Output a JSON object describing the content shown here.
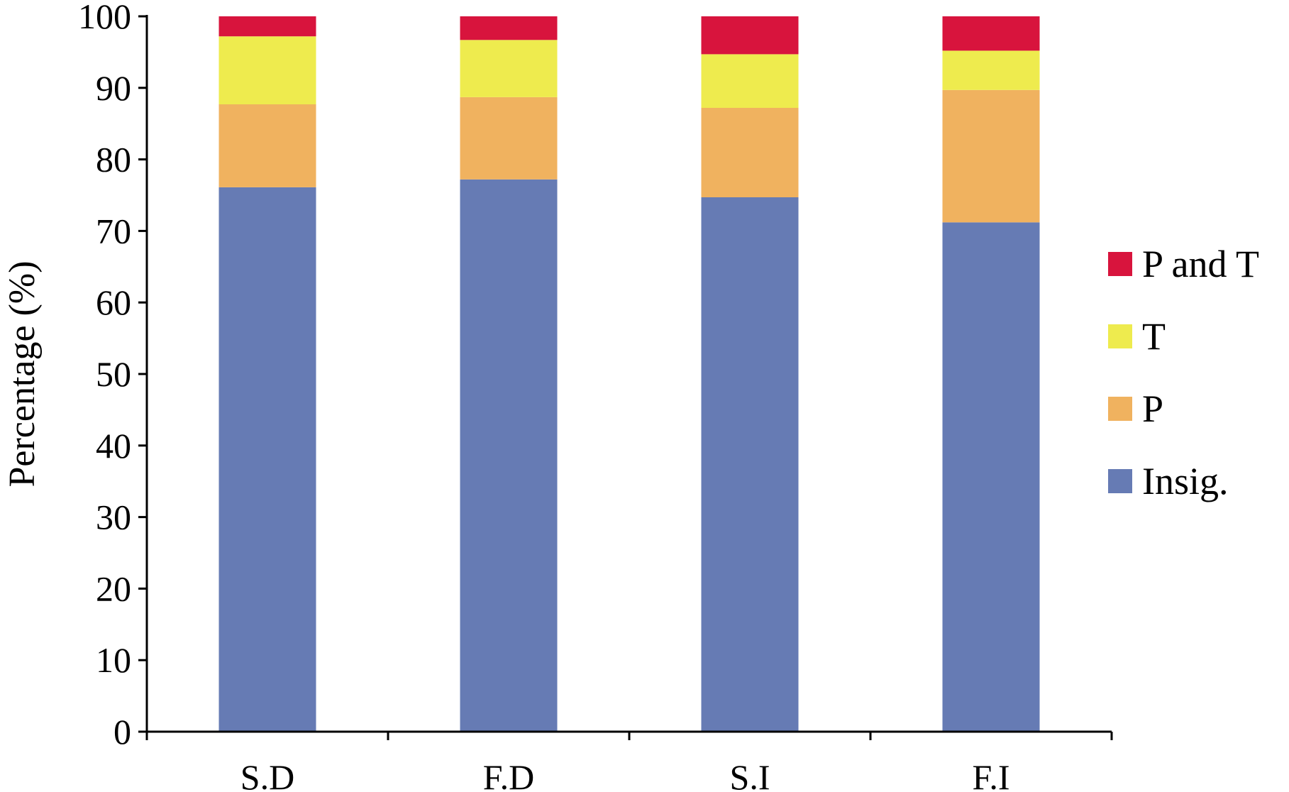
{
  "chart_data": {
    "type": "bar",
    "stacked": true,
    "title": "",
    "xlabel": "",
    "ylabel": "Percentage (%)",
    "ylim": [
      0,
      100
    ],
    "yticks": [
      0,
      10,
      20,
      30,
      40,
      50,
      60,
      70,
      80,
      90,
      100
    ],
    "grid": false,
    "legend_position": "right",
    "categories": [
      "S.D",
      "F.D",
      "S.I",
      "F.I"
    ],
    "series": [
      {
        "name": "Insig.",
        "color": "#667bb4",
        "values": [
          76.1,
          77.2,
          74.7,
          71.2
        ]
      },
      {
        "name": "P",
        "color": "#f0b25f",
        "values": [
          11.6,
          11.5,
          12.5,
          18.5
        ]
      },
      {
        "name": "T",
        "color": "#eeeb4e",
        "values": [
          9.5,
          8.0,
          7.5,
          5.5
        ]
      },
      {
        "name": "P and T",
        "color": "#d8143d",
        "values": [
          2.8,
          3.3,
          5.3,
          4.8
        ]
      }
    ]
  }
}
